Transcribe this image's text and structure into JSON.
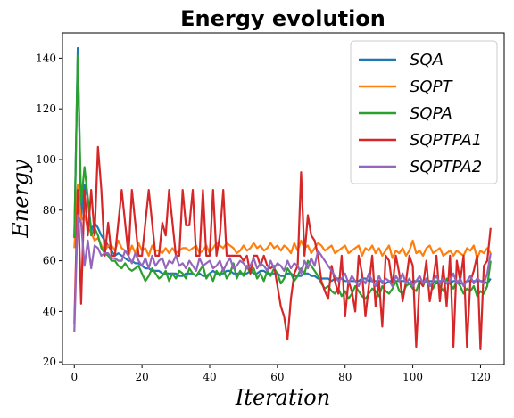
{
  "chart_data": {
    "type": "line",
    "title": "Energy evolution",
    "xlabel": "Iteration",
    "ylabel": "Energy",
    "xlim": [
      -3.5,
      127
    ],
    "ylim": [
      19,
      150
    ],
    "xticks": [
      0,
      20,
      40,
      60,
      80,
      100,
      120
    ],
    "yticks": [
      20,
      40,
      60,
      80,
      100,
      120,
      140
    ],
    "grid": false,
    "legend_position": "top-right",
    "series": [
      {
        "name": "SQA",
        "color": "#1f77b4",
        "values": [
          69,
          144,
          77,
          90,
          85,
          72,
          75,
          73,
          70,
          68,
          66,
          64,
          62,
          63,
          62,
          61,
          60,
          60,
          59,
          59,
          58,
          57,
          57,
          56,
          56,
          56,
          55,
          55,
          55,
          55,
          55,
          54,
          54,
          55,
          55,
          55,
          54,
          55,
          54,
          54,
          55,
          56,
          55,
          55,
          55,
          56,
          56,
          55,
          55,
          55,
          55,
          55,
          56,
          55,
          55,
          56,
          56,
          55,
          55,
          55,
          55,
          54,
          54,
          55,
          55,
          54,
          54,
          54,
          55,
          55,
          54,
          54,
          53,
          53,
          53,
          53,
          52,
          53,
          53,
          53,
          52,
          52,
          52,
          52,
          52,
          53,
          53,
          52,
          52,
          52,
          52,
          52,
          51,
          52,
          52,
          52,
          52,
          52,
          52,
          51,
          52,
          52,
          52,
          51,
          52,
          52,
          52,
          51,
          52,
          52,
          51,
          51,
          52,
          52,
          51,
          51,
          52,
          52,
          52,
          52,
          52,
          52,
          51,
          53
        ]
      },
      {
        "name": "SQPT",
        "color": "#ff7f0e",
        "values": [
          65,
          90,
          76,
          78,
          73,
          71,
          68,
          69,
          66,
          64,
          66,
          66,
          64,
          68,
          65,
          64,
          62,
          66,
          63,
          67,
          64,
          65,
          62,
          66,
          64,
          64,
          63,
          65,
          63,
          65,
          63,
          64,
          65,
          65,
          64,
          65,
          66,
          63,
          64,
          66,
          63,
          65,
          67,
          66,
          65,
          67,
          66,
          65,
          63,
          64,
          66,
          64,
          65,
          67,
          65,
          66,
          64,
          65,
          67,
          65,
          66,
          64,
          66,
          65,
          63,
          67,
          64,
          68,
          65,
          66,
          63,
          65,
          67,
          66,
          64,
          65,
          66,
          63,
          64,
          65,
          66,
          63,
          64,
          65,
          66,
          62,
          65,
          64,
          66,
          63,
          65,
          62,
          64,
          66,
          61,
          64,
          63,
          65,
          62,
          64,
          68,
          63,
          64,
          62,
          65,
          66,
          63,
          64,
          65,
          62,
          63,
          64,
          62,
          64,
          63,
          62,
          65,
          64,
          66,
          61,
          64,
          63,
          65,
          63
        ]
      },
      {
        "name": "SQPA",
        "color": "#2ca02c",
        "values": [
          69,
          141,
          83,
          97,
          85,
          70,
          73,
          70,
          65,
          63,
          62,
          60,
          60,
          58,
          57,
          59,
          57,
          56,
          57,
          58,
          55,
          52,
          54,
          57,
          55,
          53,
          54,
          56,
          52,
          55,
          53,
          56,
          55,
          53,
          57,
          55,
          54,
          56,
          58,
          53,
          55,
          52,
          56,
          54,
          57,
          53,
          55,
          59,
          53,
          56,
          54,
          58,
          55,
          57,
          53,
          55,
          52,
          56,
          54,
          57,
          55,
          51,
          53,
          57,
          55,
          52,
          54,
          57,
          55,
          60,
          58,
          56,
          54,
          51,
          49,
          50,
          48,
          47,
          49,
          46,
          48,
          45,
          47,
          50,
          48,
          46,
          45,
          47,
          49,
          48,
          46,
          50,
          48,
          47,
          49,
          52,
          48,
          47,
          50,
          51,
          49,
          48,
          52,
          50,
          53,
          51,
          49,
          52,
          50,
          48,
          53,
          51,
          49,
          52,
          50,
          47,
          49,
          48,
          50,
          46,
          48,
          47,
          50,
          60
        ]
      },
      {
        "name": "SQPTPA1",
        "color": "#d62728",
        "values": [
          35,
          88,
          43,
          88,
          70,
          88,
          70,
          105,
          88,
          62,
          75,
          62,
          62,
          75,
          88,
          75,
          62,
          88,
          75,
          62,
          62,
          75,
          88,
          75,
          62,
          62,
          75,
          70,
          88,
          75,
          62,
          62,
          88,
          74,
          74,
          88,
          62,
          62,
          88,
          62,
          62,
          88,
          62,
          70,
          88,
          62,
          62,
          62,
          62,
          62,
          60,
          62,
          55,
          62,
          62,
          58,
          62,
          58,
          57,
          58,
          50,
          42,
          38,
          29,
          45,
          55,
          58,
          95,
          62,
          78,
          70,
          68,
          62,
          52,
          48,
          45,
          58,
          52,
          47,
          62,
          38,
          52,
          48,
          40,
          62,
          55,
          38,
          50,
          62,
          42,
          52,
          34,
          62,
          60,
          50,
          62,
          55,
          44,
          52,
          62,
          58,
          26,
          52,
          50,
          60,
          44,
          52,
          62,
          44,
          58,
          42,
          62,
          26,
          60,
          52,
          62,
          26,
          52,
          56,
          62,
          25,
          58,
          60,
          73
        ]
      },
      {
        "name": "SQPTPA2",
        "color": "#9467bd",
        "values": [
          32,
          78,
          75,
          58,
          68,
          57,
          66,
          65,
          62,
          63,
          63,
          61,
          61,
          60,
          60,
          64,
          62,
          59,
          63,
          60,
          58,
          61,
          57,
          62,
          58,
          60,
          61,
          57,
          60,
          59,
          62,
          58,
          59,
          57,
          60,
          58,
          56,
          61,
          58,
          59,
          60,
          57,
          58,
          60,
          56,
          59,
          61,
          57,
          58,
          60,
          59,
          57,
          58,
          61,
          57,
          59,
          58,
          56,
          60,
          57,
          59,
          58,
          56,
          60,
          57,
          59,
          58,
          55,
          60,
          57,
          61,
          58,
          64,
          62,
          60,
          58,
          56,
          54,
          52,
          53,
          55,
          51,
          54,
          52,
          50,
          53,
          51,
          55,
          52,
          50,
          54,
          51,
          53,
          52,
          50,
          54,
          52,
          55,
          51,
          53,
          50,
          52,
          54,
          51,
          53,
          50,
          52,
          54,
          51,
          53,
          51,
          52,
          55,
          51,
          53,
          50,
          52,
          54,
          51,
          53,
          52,
          51,
          55,
          63
        ]
      }
    ]
  }
}
